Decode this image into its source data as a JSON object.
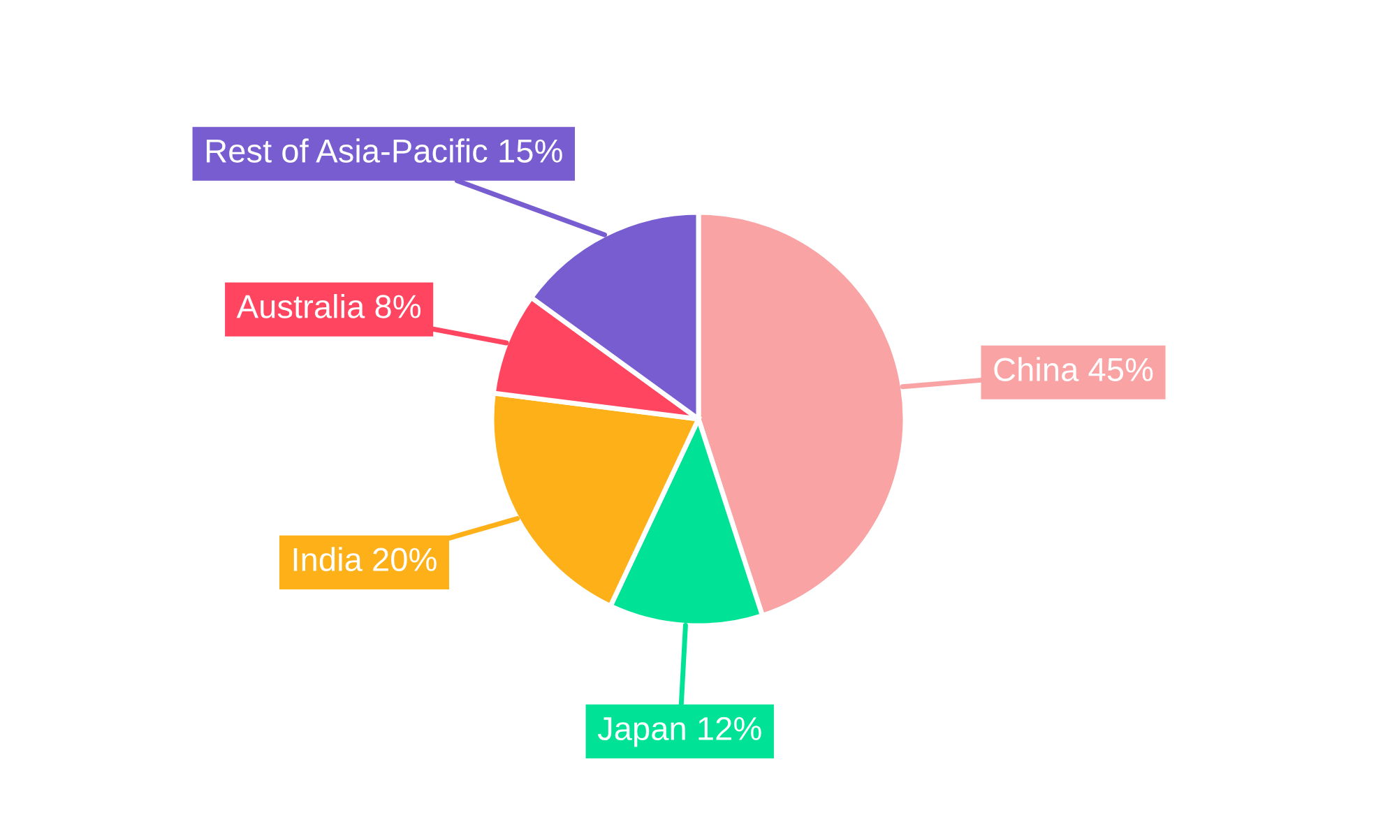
{
  "chart_data": {
    "type": "pie",
    "categories": [
      "China",
      "Japan",
      "India",
      "Australia",
      "Rest of Asia-Pacific"
    ],
    "values": [
      45,
      12,
      20,
      8,
      15
    ],
    "colors": [
      "#f9a3a4",
      "#00e396",
      "#feb019",
      "#ff4560",
      "#775dd0"
    ],
    "value_labels": [
      "45%",
      "12%",
      "20%",
      "8%",
      "15%"
    ]
  }
}
